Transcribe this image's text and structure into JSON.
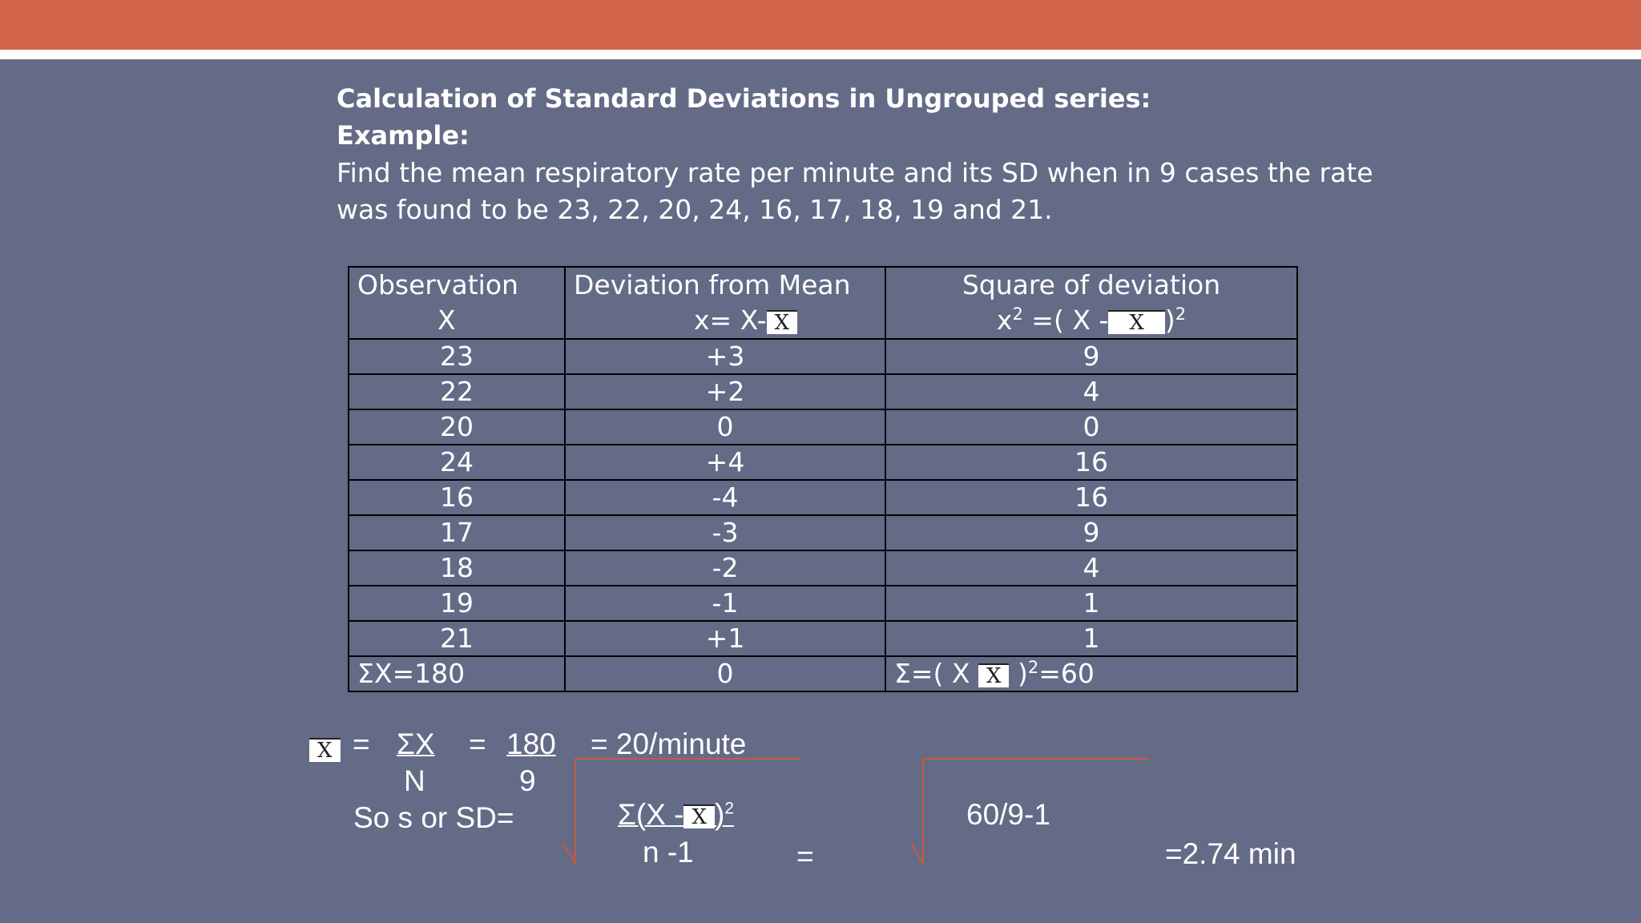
{
  "slide": {
    "heading": "Calculation of Standard Deviations in Ungrouped series:",
    "example_label": "Example:",
    "problem_line1": "Find the mean respiratory rate per minute and its SD when in 9 cases the rate",
    "problem_line2": "was found to be 23, 22, 20, 24, 16, 17, 18, 19 and 21."
  },
  "table": {
    "headers": {
      "col1_line1": "Observation",
      "col1_line2": "X",
      "col2_line1": "Deviation from Mean",
      "col2_line2_prefix": "x= X-",
      "col3_line1": "Square of deviation",
      "col3_line2_x": "x",
      "col3_line2_sup": "2",
      "col3_line2_mid": " =( X  -",
      "col3_line2_close": ")",
      "col3_line2_close_sup": "2"
    },
    "rows": [
      [
        "23",
        "+3",
        "9"
      ],
      [
        "22",
        "+2",
        "4"
      ],
      [
        "20",
        "0",
        "0"
      ],
      [
        "24",
        "+4",
        "16"
      ],
      [
        "16",
        "-4",
        "16"
      ],
      [
        "17",
        "-3",
        "9"
      ],
      [
        "18",
        "-2",
        "4"
      ],
      [
        "19",
        "-1",
        "1"
      ],
      [
        "21",
        "+1",
        "1"
      ]
    ],
    "totals": {
      "sum_x": "ΣX=180",
      "sum_dev": "0",
      "sum_sq_prefix": "Σ=( X ",
      "sum_sq_close": " )",
      "sum_sq_sup": "2",
      "sum_sq_value": "=60"
    }
  },
  "xbar_symbol": "X",
  "formula": {
    "eq1": "=",
    "sigma_x": "ΣX",
    "n": "N",
    "eq2": "=",
    "num": "180",
    "den": "9",
    "result": "= 20/minute",
    "sd_label": "So s or SD=",
    "sd_num_prefix": "Σ(X -",
    "sd_num_sup": "2",
    "sd_den": "n  -1",
    "eq3": "=",
    "sd_value_expr": "60/9-1",
    "sd_final": "=2.74 min"
  }
}
